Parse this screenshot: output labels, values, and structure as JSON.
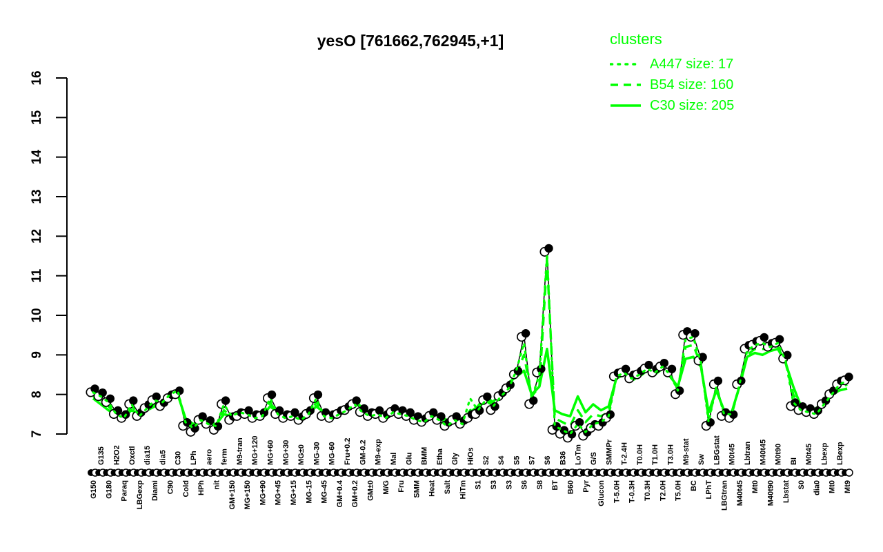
{
  "colors": {
    "cluster_green": "#00ff00",
    "series_black": "#000000",
    "open_point_fill": "#ffffff",
    "background": "#ffffff"
  },
  "legend": {
    "title": "clusters",
    "items": [
      {
        "label": "A447 size: 17",
        "line_style": "dotted"
      },
      {
        "label": "B54 size: 160",
        "line_style": "dashed"
      },
      {
        "label": "C30 size: 205",
        "line_style": "solid"
      }
    ]
  },
  "chart_data": {
    "type": "line",
    "title": "yesO [761662,762945,+1]",
    "xlabel": "",
    "ylabel": "",
    "ylim": [
      7,
      16
    ],
    "yticks": [
      7,
      8,
      9,
      10,
      11,
      12,
      13,
      14,
      15,
      16
    ],
    "grid": false,
    "legend_position": "top-right",
    "x_label_rows": "alternating (even index = below axis, odd index = above axis)",
    "categories": [
      "G150",
      "G135",
      "G180",
      "H2O2",
      "Paraq",
      "Oxctl",
      "LBGexp",
      "dia15",
      "Diami",
      "dia5",
      "C90",
      "C30",
      "Cold",
      "LPh",
      "HPh",
      "aero",
      "nit",
      "ferm",
      "GM+150",
      "M9-tran",
      "MG+150",
      "MG+120",
      "MG+90",
      "MG+60",
      "MG+45",
      "MG+30",
      "MG+15",
      "MG±0",
      "MG-15",
      "MG-30",
      "MG-45",
      "MG-60",
      "GM+0.4",
      "Fru+0.2",
      "GM+0.2",
      "GM-0.2",
      "GM±0",
      "M9-exp",
      "M/G",
      "Mal",
      "Fru",
      "Glu",
      "SMM",
      "BMM",
      "Heat",
      "Etha",
      "Salt",
      "Gly",
      "HiTm",
      "HiOs",
      "S1",
      "S2",
      "S3",
      "S4",
      "S3",
      "S5",
      "S6",
      "S7",
      "S8",
      "S6",
      "BT",
      "B36",
      "B60",
      "LoTm",
      "Pyr",
      "G/S",
      "Glucon",
      "SMMPr",
      "T-5.0H",
      "T-2.4H",
      "T-0.3H",
      "T0.0H",
      "T0.3H",
      "T1.0H",
      "T2.0H",
      "T3.0H",
      "T5.0H",
      "M9-stat",
      "BC",
      "Sw",
      "LPhT",
      "LBGstat",
      "LBGtran",
      "M0t45",
      "M40t45",
      "Lbtran",
      "Mt0",
      "M40t45",
      "M40t90",
      "M0t90",
      "Lbstat",
      "BI",
      "S0",
      "M0t45",
      "dia0",
      "Lbexp",
      "Mt0",
      "LBexp",
      "Mt9"
    ],
    "series": [
      {
        "name": "yesO profile",
        "role": "gene",
        "color": "#000000",
        "line_style": "solid",
        "markers": "filled and open circles",
        "values": [
          8.1,
          8.0,
          7.85,
          7.55,
          7.45,
          7.8,
          7.5,
          7.7,
          7.9,
          7.75,
          7.95,
          8.05,
          7.25,
          7.1,
          7.4,
          7.3,
          7.15,
          7.8,
          7.4,
          7.5,
          7.55,
          7.45,
          7.5,
          7.95,
          7.55,
          7.45,
          7.5,
          7.4,
          7.55,
          7.95,
          7.5,
          7.45,
          7.55,
          7.65,
          7.8,
          7.6,
          7.5,
          7.55,
          7.45,
          7.6,
          7.55,
          7.5,
          7.4,
          7.35,
          7.5,
          7.4,
          7.25,
          7.4,
          7.3,
          7.45,
          7.55,
          7.9,
          7.65,
          8.0,
          8.2,
          8.55,
          9.5,
          7.8,
          8.6,
          11.65,
          7.15,
          7.05,
          6.95,
          7.25,
          7.0,
          7.2,
          7.25,
          7.45,
          8.5,
          8.6,
          8.45,
          8.55,
          8.7,
          8.6,
          8.75,
          8.6,
          8.05,
          9.55,
          9.5,
          8.9,
          7.25,
          8.3,
          7.5,
          7.45,
          8.3,
          9.2,
          9.3,
          9.4,
          9.25,
          9.35,
          8.95,
          7.75,
          7.65,
          7.6,
          7.55,
          7.8,
          8.05,
          8.3,
          8.4
        ]
      },
      {
        "name": "A447",
        "role": "cluster-mean",
        "size": 17,
        "color": "#00ff00",
        "line_style": "dotted",
        "values": [
          8.05,
          7.95,
          7.8,
          7.5,
          7.4,
          7.75,
          7.45,
          7.65,
          7.85,
          7.8,
          8.0,
          8.1,
          7.3,
          7.15,
          7.35,
          7.25,
          7.2,
          7.75,
          7.45,
          7.55,
          7.5,
          7.4,
          7.45,
          7.9,
          7.5,
          7.4,
          7.45,
          7.35,
          7.5,
          7.9,
          7.45,
          7.4,
          7.5,
          7.6,
          7.75,
          7.55,
          7.45,
          7.5,
          7.4,
          7.55,
          7.5,
          7.45,
          7.35,
          7.3,
          7.45,
          7.35,
          7.2,
          7.35,
          7.25,
          7.9,
          7.6,
          7.85,
          7.7,
          7.95,
          8.15,
          8.6,
          9.3,
          7.9,
          8.5,
          11.55,
          7.2,
          7.1,
          7.0,
          7.25,
          7.05,
          7.25,
          7.3,
          7.45,
          8.45,
          8.55,
          8.4,
          8.5,
          8.65,
          8.55,
          8.7,
          8.5,
          8.1,
          9.4,
          9.45,
          8.8,
          7.3,
          8.2,
          7.5,
          7.5,
          8.25,
          9.1,
          9.25,
          9.3,
          9.2,
          9.3,
          8.85,
          7.8,
          7.6,
          7.55,
          7.5,
          7.75,
          8.0,
          8.25,
          8.35
        ]
      },
      {
        "name": "B54",
        "role": "cluster-mean",
        "size": 160,
        "color": "#00ff00",
        "line_style": "dashed",
        "values": [
          7.95,
          7.85,
          7.7,
          7.5,
          7.45,
          7.7,
          7.5,
          7.6,
          7.75,
          7.8,
          7.95,
          8.05,
          7.35,
          7.2,
          7.35,
          7.25,
          7.2,
          7.6,
          7.45,
          7.5,
          7.55,
          7.45,
          7.45,
          7.8,
          7.5,
          7.45,
          7.5,
          7.4,
          7.5,
          7.8,
          7.5,
          7.45,
          7.55,
          7.65,
          7.8,
          7.6,
          7.5,
          7.55,
          7.45,
          7.6,
          7.55,
          7.5,
          7.4,
          7.35,
          7.5,
          7.4,
          7.3,
          7.4,
          7.3,
          7.6,
          7.65,
          7.9,
          7.75,
          8.05,
          8.25,
          8.5,
          9.0,
          7.95,
          8.2,
          11.4,
          7.4,
          7.3,
          7.2,
          7.6,
          7.3,
          7.5,
          7.45,
          7.55,
          8.4,
          8.5,
          8.35,
          8.45,
          8.6,
          8.5,
          8.65,
          8.45,
          8.15,
          9.2,
          9.25,
          8.75,
          7.4,
          8.15,
          7.55,
          7.5,
          8.2,
          9.0,
          9.15,
          9.15,
          9.15,
          9.2,
          8.8,
          8.0,
          7.65,
          7.55,
          7.6,
          7.8,
          8.0,
          8.15,
          8.25
        ]
      },
      {
        "name": "C30",
        "role": "cluster-mean",
        "size": 205,
        "color": "#00ff00",
        "line_style": "solid",
        "values": [
          7.9,
          7.75,
          7.6,
          7.5,
          7.45,
          7.6,
          7.5,
          7.6,
          7.7,
          7.8,
          7.9,
          8.0,
          7.4,
          7.25,
          7.35,
          7.3,
          7.25,
          7.5,
          7.45,
          7.5,
          7.55,
          7.5,
          7.45,
          7.7,
          7.55,
          7.5,
          7.55,
          7.45,
          7.5,
          7.7,
          7.55,
          7.5,
          7.6,
          7.7,
          7.85,
          7.65,
          7.55,
          7.6,
          7.5,
          7.65,
          7.6,
          7.55,
          7.45,
          7.4,
          7.55,
          7.45,
          7.35,
          7.45,
          7.35,
          7.55,
          7.7,
          7.95,
          7.8,
          8.1,
          8.3,
          8.45,
          8.6,
          8.0,
          8.2,
          9.15,
          7.6,
          7.5,
          7.45,
          7.95,
          7.55,
          7.75,
          7.6,
          7.7,
          8.4,
          8.55,
          8.35,
          8.5,
          8.65,
          8.5,
          8.7,
          8.45,
          8.2,
          8.9,
          8.95,
          8.7,
          7.55,
          8.1,
          7.6,
          7.55,
          8.2,
          8.95,
          9.05,
          9.0,
          9.1,
          9.15,
          8.8,
          8.2,
          7.7,
          7.6,
          7.65,
          7.85,
          8.0,
          8.1,
          8.15
        ]
      }
    ]
  }
}
